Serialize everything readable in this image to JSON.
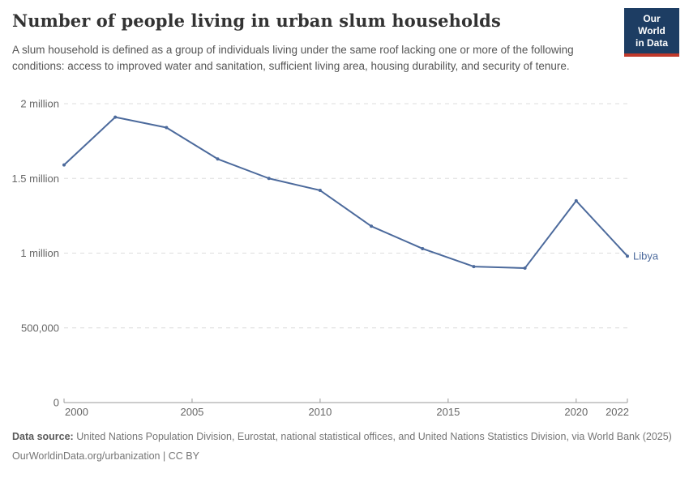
{
  "header": {
    "title": "Number of people living in urban slum households",
    "subtitle": "A slum household is defined as a group of individuals living under the same roof lacking one or more of the following conditions: access to improved water and sanitation, sufficient living area, housing durability, and security of tenure.",
    "logo": {
      "line1": "Our World",
      "line2": "in Data",
      "background_color": "#1d3d63",
      "bar_color": "#c0392b"
    }
  },
  "chart_data": {
    "type": "line",
    "title": "Number of people living in urban slum households",
    "x": [
      2000,
      2002,
      2004,
      2006,
      2008,
      2010,
      2012,
      2014,
      2016,
      2018,
      2020,
      2022
    ],
    "series": [
      {
        "name": "Libya",
        "color": "#4C6A9C",
        "values": [
          1590000,
          1910000,
          1840000,
          1630000,
          1500000,
          1420000,
          1180000,
          1030000,
          910000,
          900000,
          1350000,
          980000
        ]
      }
    ],
    "xlim": [
      2000,
      2022
    ],
    "ylim": [
      0,
      2000000
    ],
    "xticks": [
      2000,
      2005,
      2010,
      2015,
      2020,
      2022
    ],
    "yticks": [
      {
        "value": 0,
        "label": "0"
      },
      {
        "value": 500000,
        "label": "500,000"
      },
      {
        "value": 1000000,
        "label": "1 million"
      },
      {
        "value": 1500000,
        "label": "1.5 million"
      },
      {
        "value": 2000000,
        "label": "2 million"
      }
    ],
    "grid": "horizontal dashed",
    "legend_position": "end-of-line label",
    "xlabel": "",
    "ylabel": "",
    "gridline_color": "#dddddd",
    "axis_color": "#999999",
    "tick_label_color": "#666666"
  },
  "footer": {
    "source_label": "Data source:",
    "source_text": "United Nations Population Division, Eurostat, national statistical offices, and United Nations Statistics Division, via World Bank (2025)",
    "link_text": "OurWorldinData.org/urbanization",
    "license_text": " | CC BY"
  }
}
